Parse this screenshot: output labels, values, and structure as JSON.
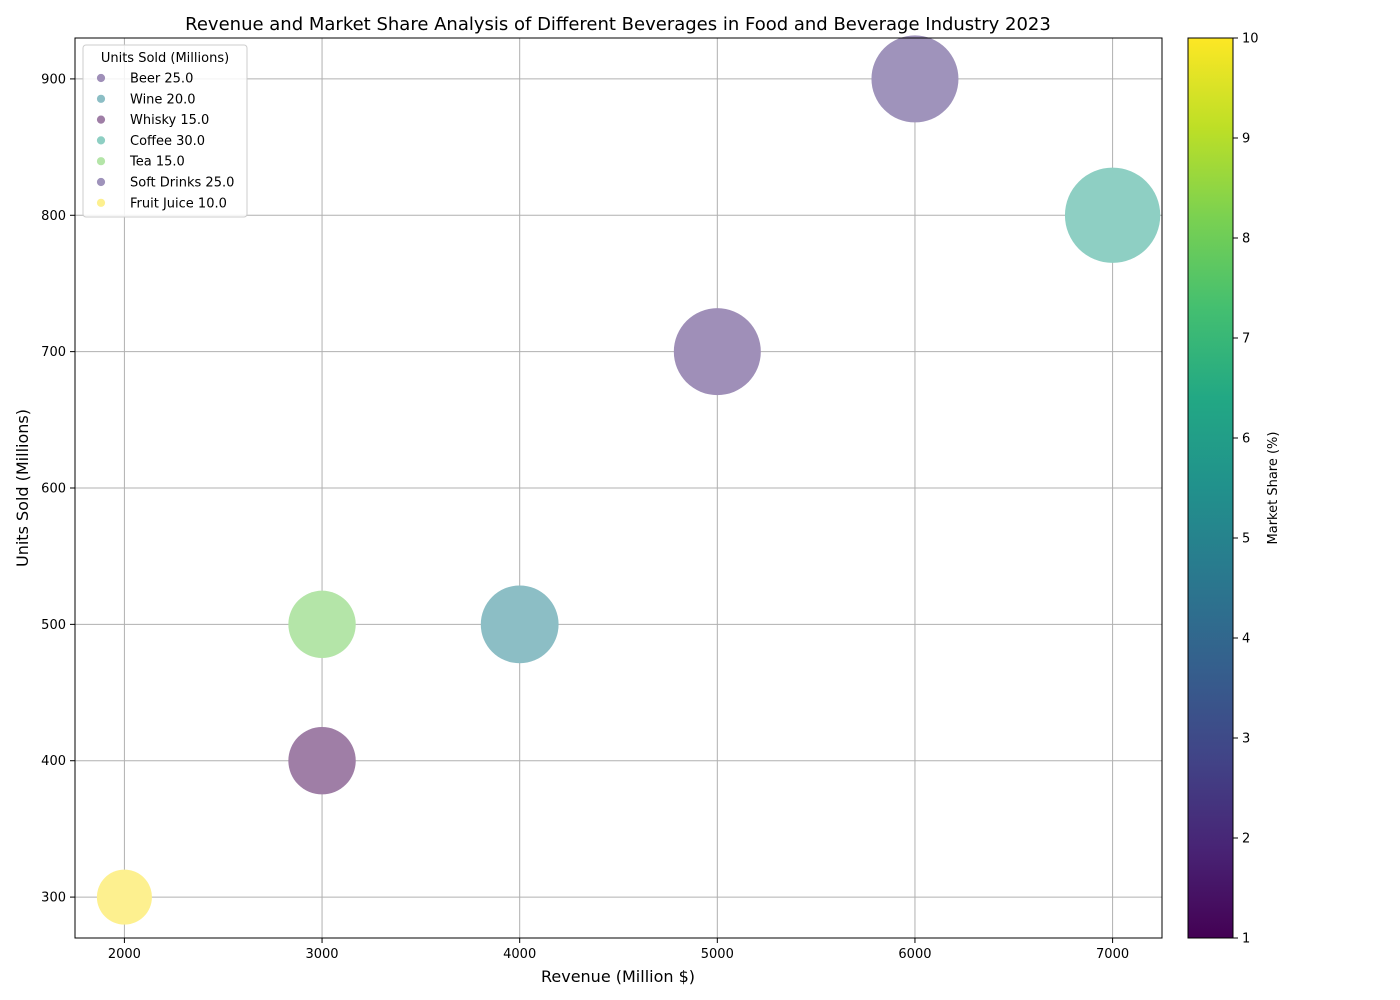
{
  "chart_data": {
    "type": "scatter",
    "title": "Revenue and Market Share Analysis of Different Beverages in Food and Beverage Industry 2023",
    "xlabel": "Revenue (Million $)",
    "ylabel": "Units Sold (Millions)",
    "xlim": [
      1750,
      7250
    ],
    "ylim": [
      270,
      930
    ],
    "xticks": [
      2000,
      3000,
      4000,
      5000,
      6000,
      7000
    ],
    "yticks": [
      300,
      400,
      500,
      600,
      700,
      800,
      900
    ],
    "grid": true,
    "legend": {
      "title": "Units Sold (Millions)",
      "position": "top-left"
    },
    "colorbar": {
      "label": "Market Share (%)",
      "min": 1,
      "max": 10,
      "ticks": [
        1,
        2,
        3,
        4,
        5,
        6,
        7,
        8,
        9,
        10
      ]
    },
    "points": [
      {
        "name": "Beer",
        "revenue": 5000,
        "units": 700,
        "share": 25.0,
        "legend_label": "Beer 25.0",
        "color": "#9f8fb8"
      },
      {
        "name": "Wine",
        "revenue": 4000,
        "units": 500,
        "share": 20.0,
        "legend_label": "Wine 20.0",
        "color": "#8cbec5"
      },
      {
        "name": "Whisky",
        "revenue": 3000,
        "units": 400,
        "share": 15.0,
        "legend_label": "Whisky 15.0",
        "color": "#9f7ea6"
      },
      {
        "name": "Coffee",
        "revenue": 7000,
        "units": 800,
        "share": 30.0,
        "legend_label": "Coffee 30.0",
        "color": "#8ecfc3"
      },
      {
        "name": "Tea",
        "revenue": 3000,
        "units": 500,
        "share": 15.0,
        "legend_label": "Tea 15.0",
        "color": "#b4e5a8"
      },
      {
        "name": "Soft Drinks",
        "revenue": 6000,
        "units": 900,
        "share": 25.0,
        "legend_label": "Soft Drinks 25.0",
        "color": "#9f93bb"
      },
      {
        "name": "Fruit Juice",
        "revenue": 2000,
        "units": 300,
        "share": 10.0,
        "legend_label": "Fruit Juice 10.0",
        "color": "#fdf08f"
      }
    ]
  }
}
